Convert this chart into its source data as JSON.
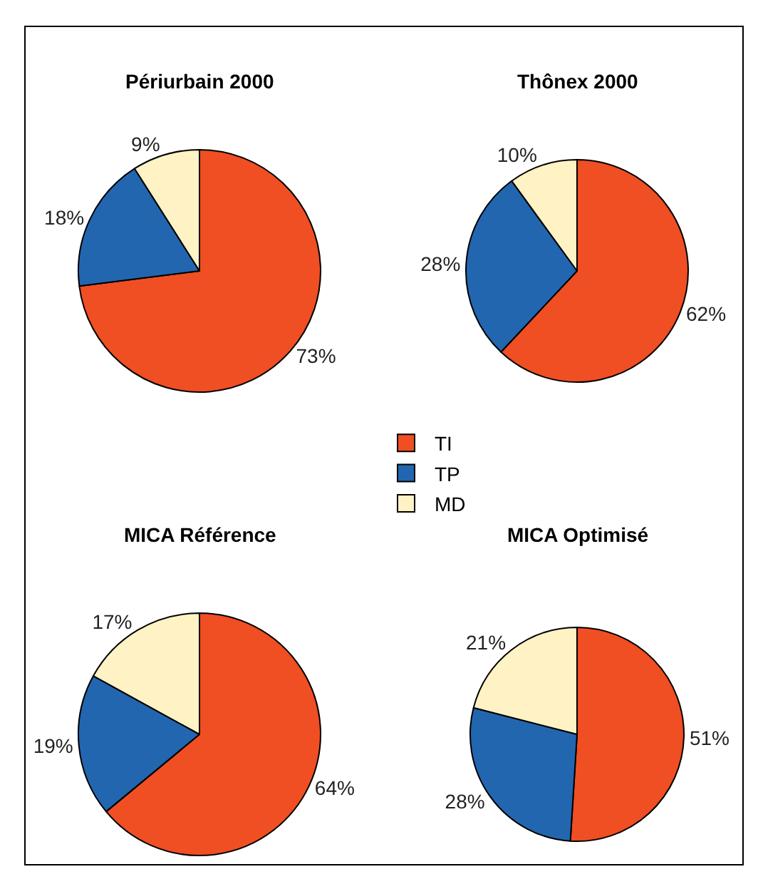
{
  "chart_data": [
    {
      "type": "pie",
      "title": "Périurbain 2000",
      "categories": [
        "TI",
        "TP",
        "MD"
      ],
      "values": [
        73,
        18,
        9
      ],
      "value_labels": [
        "73%",
        "18%",
        "9%"
      ],
      "colors": [
        "#f04e23",
        "#2266b0",
        "#fff2c4"
      ],
      "legend": "right"
    },
    {
      "type": "pie",
      "title": "Thônex 2000",
      "categories": [
        null,
        null,
        null
      ],
      "values": [
        62,
        28,
        10
      ],
      "value_labels": [
        "62%",
        "28%",
        "10%"
      ],
      "colors": [
        "#f04e23",
        "#2266b0",
        "#fff2c4"
      ]
    },
    {
      "type": "pie",
      "title": "MICA Référence",
      "categories": [
        null,
        null,
        null
      ],
      "values": [
        64,
        19,
        17
      ],
      "value_labels": [
        "64%",
        "19%",
        "17%"
      ],
      "colors": [
        "#f04e23",
        "#2266b0",
        "#fff2c4"
      ]
    },
    {
      "type": "pie",
      "title": "MICA Optimisé",
      "categories": [
        null,
        null,
        null
      ],
      "values": [
        51,
        28,
        21
      ],
      "value_labels": [
        "51%",
        "28%",
        "21%"
      ],
      "colors": [
        "#f04e23",
        "#2266b0",
        "#fff2c4"
      ]
    }
  ]
}
